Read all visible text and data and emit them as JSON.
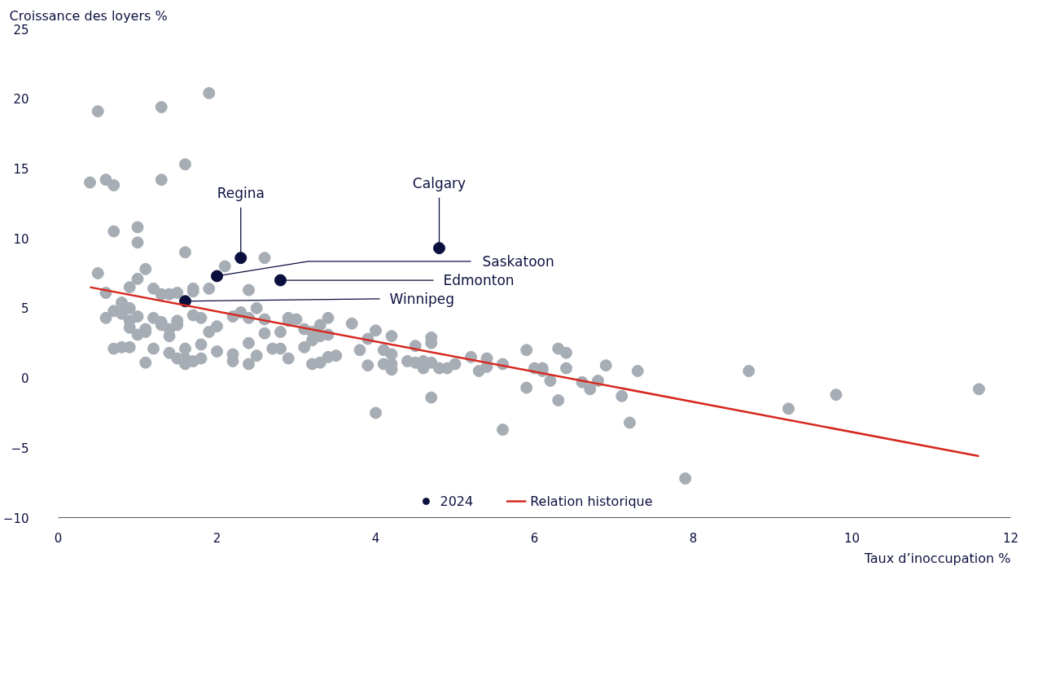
{
  "chart_data": {
    "type": "scatter",
    "xlabel": "Taux d’inoccupation %",
    "ylabel": "Croissance des loyers %",
    "xlim": [
      0,
      12
    ],
    "ylim": [
      -10,
      25
    ],
    "xticks": [
      0,
      2,
      4,
      6,
      8,
      10,
      12
    ],
    "yticks": [
      -10,
      -5,
      0,
      5,
      10,
      15,
      20,
      25
    ],
    "grid": false,
    "legend": "bottom",
    "marker": "circle",
    "series": [
      {
        "color": "#a7adb5",
        "x": [
          0.4,
          0.5,
          0.6,
          0.7,
          1.3,
          1.9,
          1.6,
          1.3,
          0.7,
          1.0,
          1.0,
          1.6,
          0.5,
          1.1,
          1.0,
          0.6,
          0.9,
          1.2,
          1.3,
          1.4,
          1.5,
          1.7,
          1.7,
          1.9,
          2.1,
          2.6,
          2.4,
          0.6,
          0.7,
          0.8,
          0.8,
          0.9,
          0.9,
          1.0,
          0.9,
          1.0,
          1.1,
          1.1,
          1.2,
          1.3,
          1.3,
          1.4,
          1.4,
          1.5,
          1.5,
          1.7,
          1.8,
          2.0,
          1.9,
          2.2,
          2.3,
          2.4,
          2.5,
          2.6,
          2.6,
          2.8,
          2.9,
          2.9,
          3.0,
          3.1,
          3.2,
          3.2,
          3.3,
          3.3,
          3.4,
          3.4,
          3.7,
          0.7,
          0.8,
          0.9,
          1.1,
          1.2,
          1.4,
          1.5,
          1.6,
          1.6,
          1.6,
          1.7,
          1.8,
          1.8,
          2.0,
          2.2,
          2.2,
          2.4,
          2.4,
          2.5,
          2.7,
          2.8,
          2.9,
          3.1,
          3.2,
          3.3,
          3.4,
          3.5,
          3.8,
          3.9,
          3.9,
          4.0,
          4.0,
          4.1,
          4.1,
          4.2,
          4.2,
          4.2,
          4.2,
          4.4,
          4.5,
          4.5,
          4.6,
          4.6,
          4.7,
          4.7,
          4.7,
          4.7,
          4.8,
          4.9,
          5.0,
          5.2,
          5.3,
          5.4,
          5.4,
          5.6,
          5.6,
          5.9,
          5.9,
          6.0,
          6.1,
          6.1,
          6.2,
          6.3,
          6.3,
          6.4,
          6.4,
          6.6,
          6.7,
          6.8,
          6.9,
          7.1,
          7.2,
          7.3,
          7.9,
          8.7,
          9.2,
          9.8,
          11.6
        ],
        "values": [
          14.0,
          19.1,
          14.2,
          13.8,
          19.4,
          20.4,
          15.3,
          14.2,
          10.5,
          10.8,
          9.7,
          9.0,
          7.5,
          7.8,
          7.1,
          6.1,
          6.5,
          6.4,
          6.0,
          6.0,
          6.1,
          6.4,
          6.2,
          6.4,
          8.0,
          8.6,
          6.3,
          4.3,
          4.8,
          4.6,
          5.4,
          5.0,
          4.1,
          4.4,
          3.6,
          3.1,
          3.5,
          3.3,
          4.3,
          4.0,
          3.8,
          3.5,
          3.0,
          4.1,
          3.8,
          4.5,
          4.3,
          3.7,
          3.3,
          4.4,
          4.7,
          4.3,
          5.0,
          4.2,
          3.2,
          3.3,
          4.3,
          4.1,
          4.2,
          3.5,
          3.3,
          2.7,
          3.8,
          3.0,
          4.3,
          3.1,
          3.9,
          2.1,
          2.2,
          2.2,
          1.1,
          2.1,
          1.8,
          1.4,
          2.1,
          1.4,
          1.0,
          1.2,
          2.4,
          1.4,
          1.9,
          1.7,
          1.2,
          2.5,
          1.0,
          1.6,
          2.1,
          2.1,
          1.4,
          2.2,
          1.0,
          1.1,
          1.5,
          1.6,
          2.0,
          2.8,
          0.9,
          3.4,
          -2.5,
          2.0,
          1.0,
          3.0,
          1.7,
          1.0,
          0.6,
          1.2,
          2.3,
          1.1,
          0.7,
          1.2,
          2.9,
          2.5,
          1.1,
          -1.4,
          0.7,
          0.7,
          1.0,
          1.5,
          0.5,
          1.4,
          0.8,
          1.0,
          -3.7,
          2.0,
          -0.7,
          0.7,
          0.7,
          0.5,
          -0.2,
          2.1,
          -1.6,
          1.8,
          0.7,
          -0.3,
          -0.8,
          -0.2,
          0.9,
          -1.3,
          -3.2,
          0.5,
          -7.2,
          0.5,
          -2.2,
          -1.2,
          -0.8
        ]
      },
      {
        "name": "2024",
        "color": "#0a0f3d",
        "x": [
          2.3,
          2.0,
          2.8,
          4.8,
          1.6
        ],
        "values": [
          8.6,
          7.3,
          7.0,
          9.3,
          5.5
        ]
      },
      {
        "name": "Relation historique",
        "type": "line",
        "marker": "none",
        "color": "#d6281f",
        "x": [
          0.4,
          11.6
        ],
        "values": [
          6.5,
          -5.6
        ]
      }
    ],
    "annotations": [
      {
        "text": "Regina",
        "x": 2.3,
        "y": 8.6
      },
      {
        "text": "Saskatoon",
        "x": 2.0,
        "y": 7.3
      },
      {
        "text": "Edmonton",
        "x": 2.8,
        "y": 7.0
      },
      {
        "text": "Calgary",
        "x": 4.8,
        "y": 9.3
      },
      {
        "text": "Winnipeg",
        "x": 1.6,
        "y": 5.5
      }
    ]
  }
}
